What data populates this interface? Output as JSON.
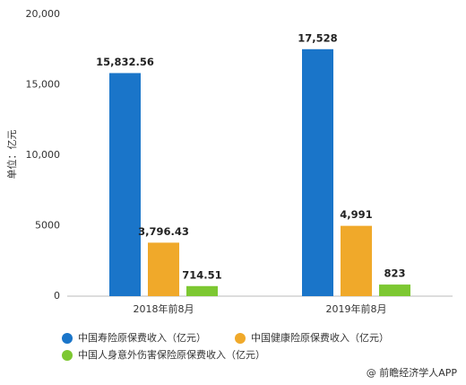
{
  "chart_data": {
    "type": "bar",
    "y_label": "单位：亿元",
    "source": "@ 前瞻经济学人APP",
    "categories": [
      "2018年前8月",
      "2019年前8月"
    ],
    "series": [
      {
        "name": "中国寿险原保费收入（亿元）",
        "color": "#1a75c9",
        "values": [
          15832.56,
          17528
        ],
        "value_labels": [
          "15,832.56",
          "17,528"
        ]
      },
      {
        "name": "中国健康险原保费收入（亿元）",
        "color": "#f0a92a",
        "values": [
          3796.43,
          4991
        ],
        "value_labels": [
          "3,796.43",
          "4,991"
        ]
      },
      {
        "name": "中国人身意外伤害保险原保费收入（亿元）",
        "color": "#7dc832",
        "values": [
          714.51,
          823
        ],
        "value_labels": [
          "714.51",
          "823"
        ]
      }
    ],
    "ylim": [
      0,
      20000
    ],
    "yticks": [
      0,
      5000,
      {
        "value": 10000,
        "label": "10,000"
      },
      {
        "value": 15000,
        "label": "15,000"
      },
      {
        "value": 20000,
        "label": "20,000"
      }
    ]
  }
}
